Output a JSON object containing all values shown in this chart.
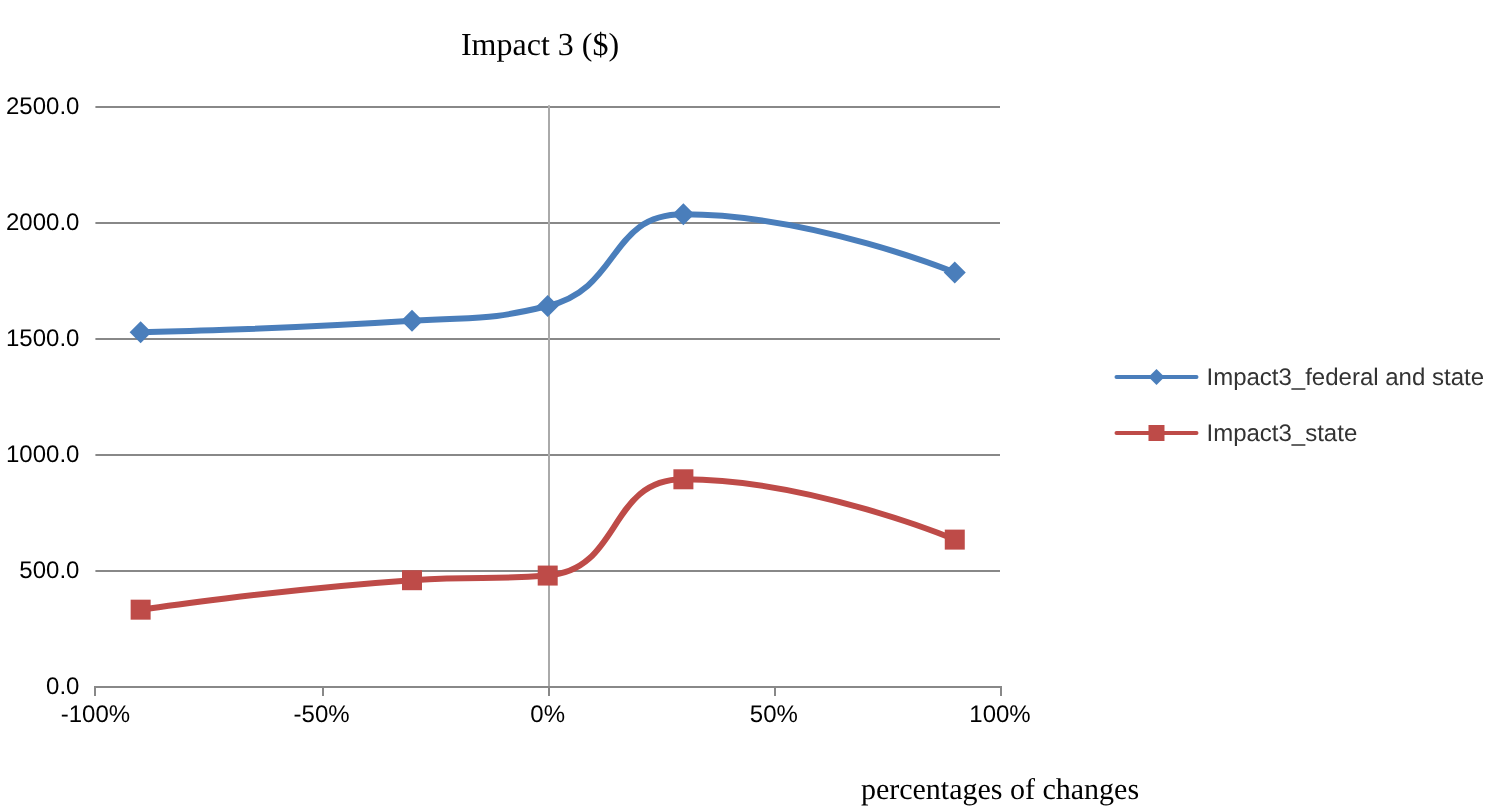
{
  "chart_data": {
    "type": "line",
    "title": "Impact 3 ($)",
    "xlabel": "percentages of changes",
    "x": [
      -90,
      -30,
      0,
      30,
      90
    ],
    "series": [
      {
        "name": "Impact3_federal and state",
        "color": "#4a7ebb",
        "marker": "diamond",
        "values": [
          1525,
          1574,
          1638,
          2033,
          1782
        ]
      },
      {
        "name": "Impact3_state",
        "color": "#be4b48",
        "marker": "square",
        "values": [
          329,
          456,
          476,
          891,
          631
        ]
      }
    ],
    "xlim": [
      -100,
      100
    ],
    "xticks": [
      {
        "value": -100,
        "label": "-100%"
      },
      {
        "value": -50,
        "label": "-50%"
      },
      {
        "value": 0,
        "label": "0%"
      },
      {
        "value": 50,
        "label": "50%"
      },
      {
        "value": 100,
        "label": "100%"
      }
    ],
    "ylim": [
      0,
      2500
    ],
    "yticks": [
      {
        "value": 0,
        "label": "0.0"
      },
      {
        "value": 500,
        "label": "500.0"
      },
      {
        "value": 1000,
        "label": "1000.0"
      },
      {
        "value": 1500,
        "label": "1500.0"
      },
      {
        "value": 2000,
        "label": "2000.0"
      },
      {
        "value": 2500,
        "label": "2500.0"
      }
    ],
    "grid": "y",
    "legend": "right"
  }
}
